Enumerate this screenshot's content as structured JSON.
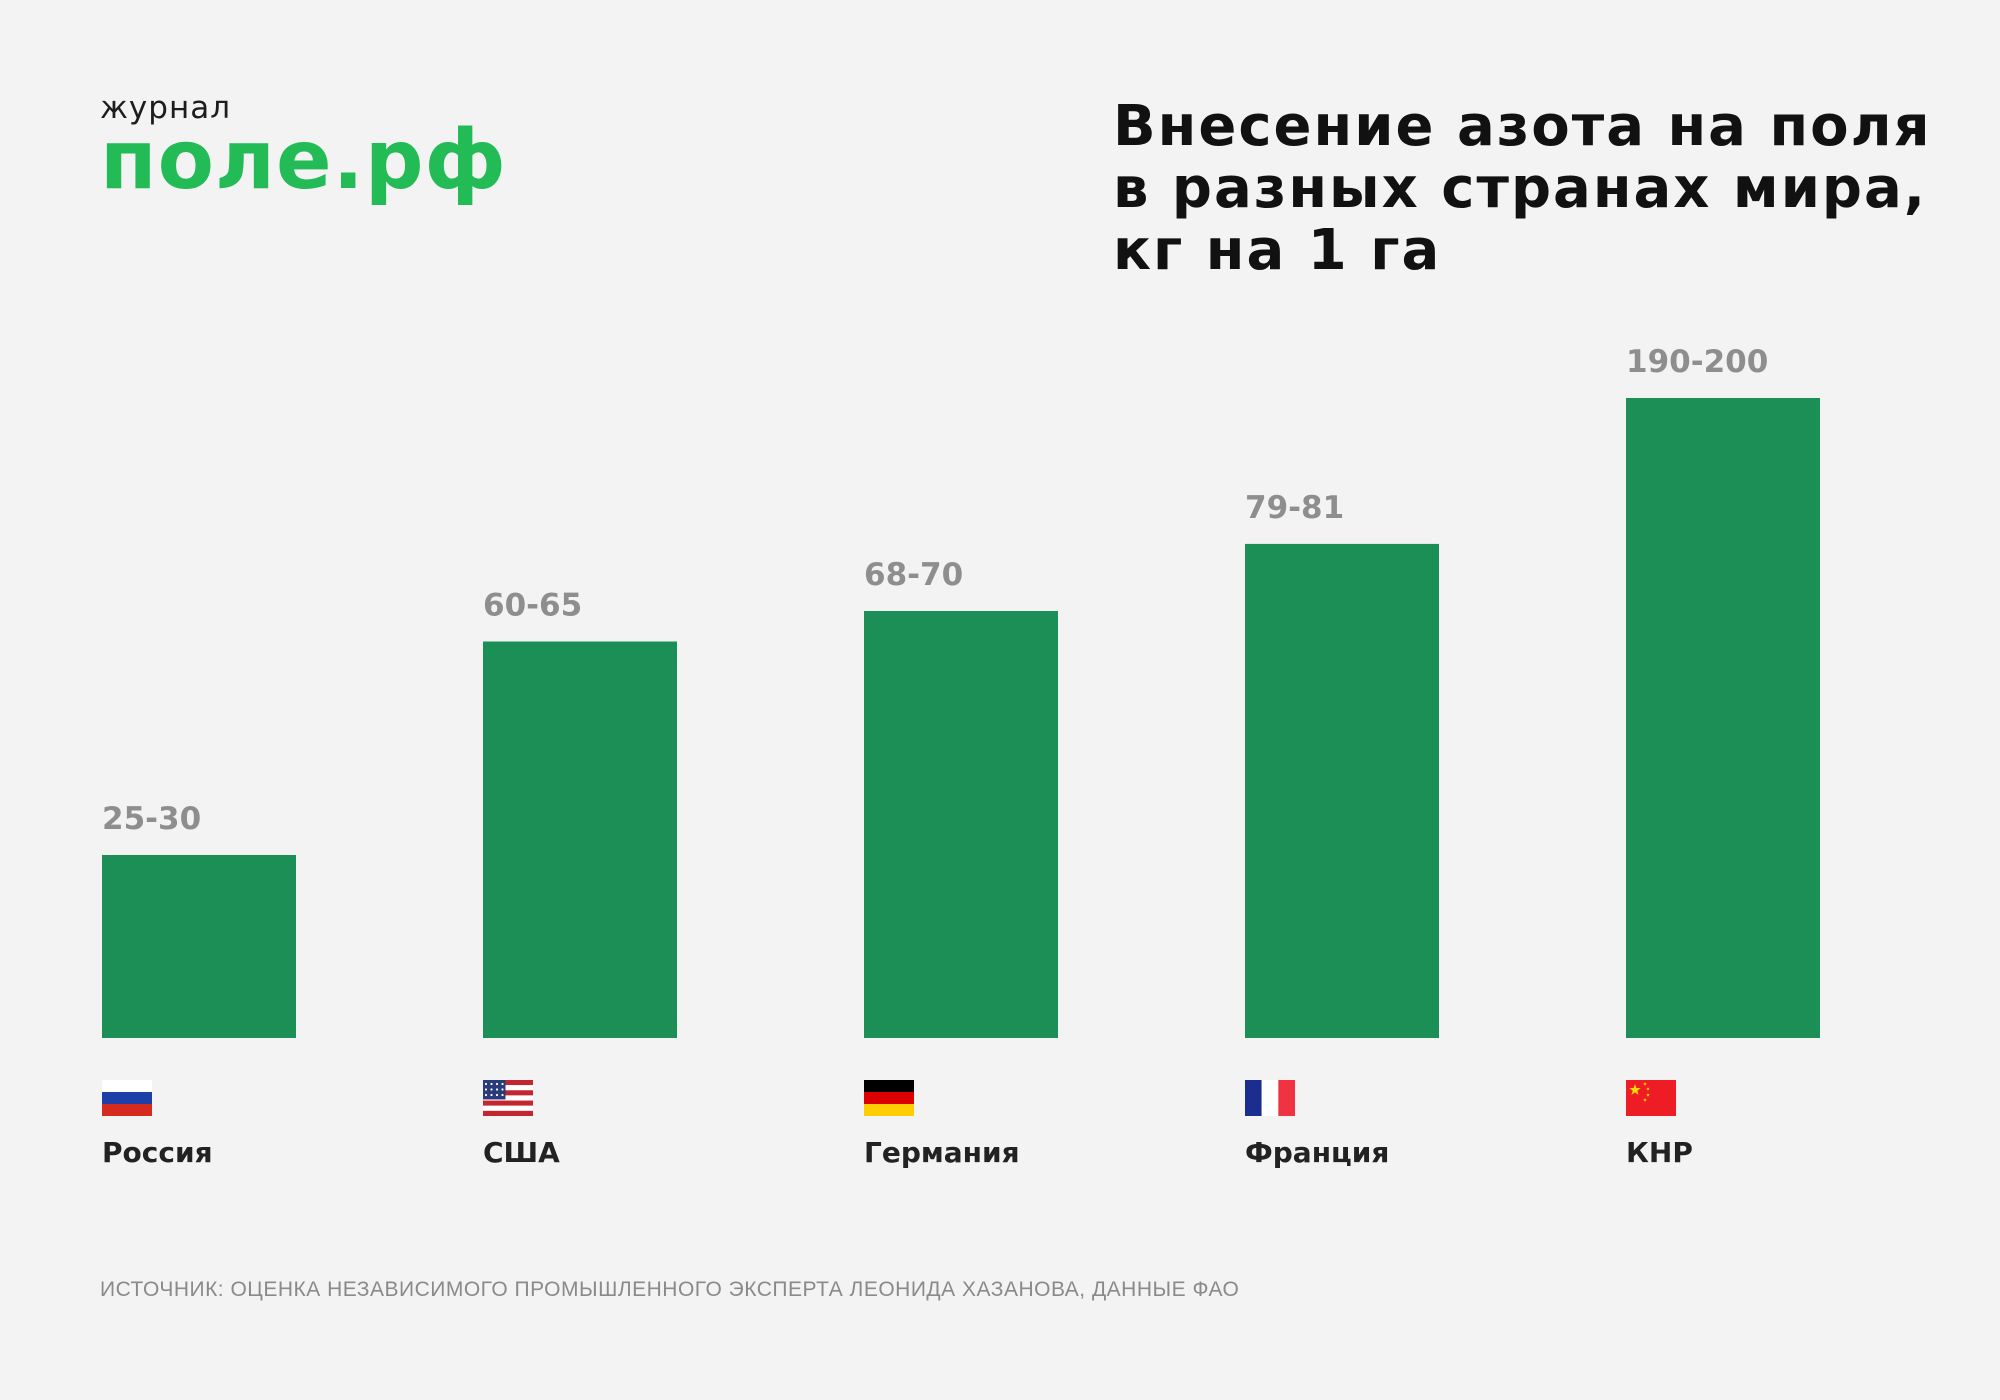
{
  "logo": {
    "small": "журнал",
    "big": "поле.рф"
  },
  "title_lines": [
    "Внесение азота на поля",
    "в разных странах мира,",
    "кг на 1 га"
  ],
  "source": "ИСТОЧНИК: ОЦЕНКА НЕЗАВИСИМОГО ПРОМЫШЛЕННОГО ЭКСПЕРТА ЛЕОНИДА ХАЗАНОВА, ДАННЫЕ ФАО",
  "colors": {
    "bar": "#1b8f56",
    "logo": "#22bb55",
    "value_label": "#8e8e8e"
  },
  "chart_data": {
    "type": "bar",
    "title": "Внесение азота на поля в разных странах мира, кг на 1 га",
    "categories": [
      "Россия",
      "США",
      "Германия",
      "Франция",
      "КНР"
    ],
    "flags": [
      "flag-russia-icon",
      "flag-usa-icon",
      "flag-germany-icon",
      "flag-france-icon",
      "flag-china-icon"
    ],
    "value_labels": [
      "25-30",
      "60-65",
      "68-70",
      "79-81",
      "190-200"
    ],
    "values": [
      30,
      65,
      70,
      81,
      195
    ],
    "ylim": [
      0,
      200
    ],
    "grid": false,
    "legend": "none"
  }
}
